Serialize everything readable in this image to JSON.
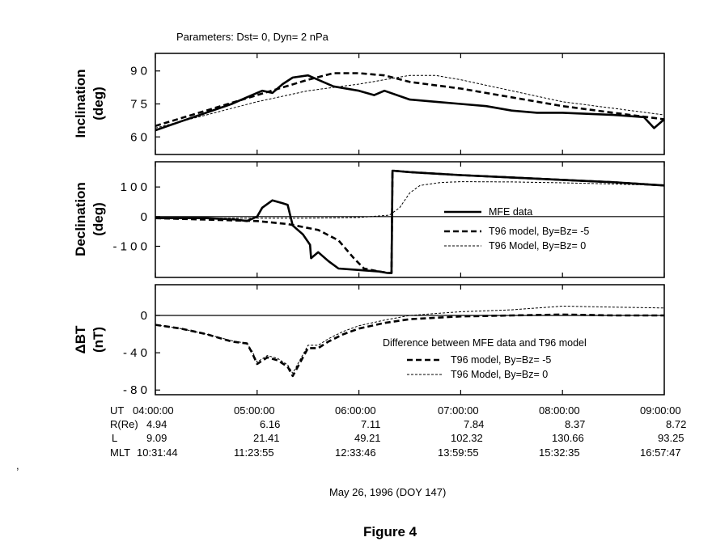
{
  "parameters_text": "Parameters:  Dst= 0, Dyn= 2 nPa",
  "figure_caption": "Figure 4",
  "date_caption": "May 26, 1996 (DOY 147)",
  "stray_mark": ",",
  "orbit_table": {
    "row_labels": [
      "UT",
      "R(Re)",
      "L",
      "MLT"
    ],
    "columns": [
      {
        "ut": "04:00:00",
        "r": "4.94",
        "l": "9.09",
        "mlt": "10:31:44"
      },
      {
        "ut": "05:00:00",
        "r": "6.16",
        "l": "21.41",
        "mlt": "11:23:55"
      },
      {
        "ut": "06:00:00",
        "r": "7.11",
        "l": "49.21",
        "mlt": "12:33:46"
      },
      {
        "ut": "07:00:00",
        "r": "7.84",
        "l": "102.32",
        "mlt": "13:59:55"
      },
      {
        "ut": "08:00:00",
        "r": "8.37",
        "l": "130.66",
        "mlt": "15:32:35"
      },
      {
        "ut": "09:00:00",
        "r": "8.72",
        "l": "93.25",
        "mlt": "16:57:47"
      }
    ]
  },
  "legend_declination": {
    "entries": [
      "MFE data",
      "T96 model, By=Bz= -5",
      "T96 Model, By=Bz=  0"
    ]
  },
  "legend_delta": {
    "title": "Difference between MFE data and T96 model",
    "entries": [
      "T96 model, By=Bz= -5",
      "T96 Model, By=Bz=  0"
    ]
  },
  "chart_data": [
    {
      "type": "line",
      "ylabel": "Inclination\n(deg)",
      "xlim": [
        4.0,
        9.0
      ],
      "ylim": [
        52,
        98
      ],
      "yticks": [
        90,
        75,
        60
      ],
      "ytick_labels": [
        "9 0",
        "7 5",
        "6 0"
      ],
      "series": [
        {
          "name": "MFE data",
          "style": "solid-thick",
          "x": [
            4.0,
            4.25,
            4.5,
            4.75,
            4.95,
            5.05,
            5.15,
            5.25,
            5.35,
            5.5,
            5.75,
            6.0,
            6.15,
            6.25,
            6.5,
            6.75,
            7.0,
            7.25,
            7.5,
            7.75,
            8.0,
            8.5,
            8.8,
            8.9,
            9.0
          ],
          "y": [
            63,
            67,
            71,
            75,
            79,
            81,
            80,
            84,
            87,
            88,
            83,
            81,
            79,
            81,
            77,
            76,
            75,
            74,
            72,
            71,
            71,
            70,
            69,
            64,
            68
          ]
        },
        {
          "name": "T96 model, By=Bz= -5",
          "style": "dashed-thick",
          "x": [
            4.0,
            4.5,
            5.0,
            5.5,
            5.75,
            6.0,
            6.25,
            6.5,
            7.0,
            7.5,
            8.0,
            8.5,
            9.0
          ],
          "y": [
            65,
            72,
            79,
            86,
            89,
            89,
            88,
            85,
            82,
            78,
            74,
            71,
            68
          ]
        },
        {
          "name": "T96 Model, By=Bz=  0",
          "style": "dotted-thin",
          "x": [
            4.0,
            4.5,
            5.0,
            5.5,
            6.0,
            6.25,
            6.5,
            6.75,
            7.0,
            7.5,
            8.0,
            8.5,
            9.0
          ],
          "y": [
            64,
            70,
            76,
            81,
            84,
            86,
            88,
            88,
            86,
            81,
            76,
            73,
            70
          ]
        }
      ]
    },
    {
      "type": "line",
      "ylabel": "Declination\n(deg)",
      "xlim": [
        4.0,
        9.0
      ],
      "ylim": [
        -205,
        185
      ],
      "yticks": [
        100,
        0,
        -100
      ],
      "ytick_labels": [
        "1 0 0",
        "0",
        "- 1 0 0"
      ],
      "hline": 0,
      "series": [
        {
          "name": "MFE data",
          "style": "solid-thick",
          "x": [
            4.0,
            4.5,
            4.8,
            4.9,
            5.0,
            5.05,
            5.15,
            5.25,
            5.3,
            5.35,
            5.45,
            5.52,
            5.53,
            5.6,
            5.7,
            5.8,
            6.0,
            6.2,
            6.28,
            6.32,
            6.33,
            6.5,
            7.0,
            7.5,
            8.0,
            8.5,
            9.0
          ],
          "y": [
            -5,
            -5,
            -10,
            -15,
            0,
            30,
            55,
            45,
            40,
            -30,
            -60,
            -95,
            -140,
            -120,
            -150,
            -175,
            -180,
            -185,
            -190,
            -190,
            155,
            150,
            140,
            132,
            124,
            116,
            105
          ]
        },
        {
          "name": "T96 model, By=Bz= -5",
          "style": "dashed-thick",
          "x": [
            4.0,
            5.0,
            5.3,
            5.6,
            5.8,
            5.95,
            6.05,
            6.2,
            6.3,
            6.32,
            6.33,
            6.5,
            7.0,
            7.5,
            8.0,
            8.5,
            9.0
          ],
          "y": [
            -5,
            -15,
            -25,
            -45,
            -80,
            -140,
            -175,
            -185,
            -190,
            -190,
            155,
            150,
            140,
            132,
            124,
            116,
            105
          ]
        },
        {
          "name": "T96 Model, By=Bz=  0",
          "style": "dotted-thin",
          "x": [
            4.0,
            5.0,
            5.5,
            6.0,
            6.3,
            6.4,
            6.5,
            6.6,
            6.8,
            7.0,
            7.5,
            8.0,
            8.5,
            9.0
          ],
          "y": [
            -5,
            -5,
            -5,
            -3,
            5,
            30,
            80,
            105,
            115,
            118,
            117,
            114,
            110,
            105
          ]
        }
      ]
    },
    {
      "type": "line",
      "ylabel": "ΔBT\n(nT)",
      "xlim": [
        4.0,
        9.0
      ],
      "ylim": [
        -85,
        33
      ],
      "yticks": [
        0,
        -40,
        -80
      ],
      "ytick_labels": [
        "0",
        "- 4 0",
        "- 8 0"
      ],
      "hline": 0,
      "series": [
        {
          "name": "T96 model, By=Bz= -5",
          "style": "dashed-thick",
          "x": [
            4.0,
            4.25,
            4.5,
            4.75,
            4.9,
            4.95,
            5.0,
            5.1,
            5.2,
            5.3,
            5.35,
            5.45,
            5.5,
            5.6,
            5.7,
            5.85,
            6.0,
            6.25,
            6.5,
            7.0,
            7.5,
            8.0,
            8.5,
            9.0
          ],
          "y": [
            -10,
            -14,
            -20,
            -28,
            -30,
            -40,
            -52,
            -45,
            -48,
            -55,
            -65,
            -45,
            -35,
            -35,
            -28,
            -20,
            -14,
            -8,
            -4,
            -1,
            0,
            1,
            0,
            0
          ]
        },
        {
          "name": "T96 Model, By=Bz=  0",
          "style": "dotted-thin",
          "x": [
            4.0,
            4.25,
            4.5,
            4.75,
            4.9,
            4.95,
            5.0,
            5.1,
            5.2,
            5.3,
            5.35,
            5.45,
            5.5,
            5.6,
            5.7,
            5.85,
            6.0,
            6.25,
            6.5,
            7.0,
            7.5,
            8.0,
            8.5,
            9.0
          ],
          "y": [
            -10,
            -14,
            -20,
            -27,
            -30,
            -38,
            -50,
            -43,
            -46,
            -53,
            -62,
            -42,
            -32,
            -32,
            -25,
            -17,
            -11,
            -5,
            0,
            4,
            6,
            10,
            9,
            8
          ]
        }
      ]
    }
  ]
}
